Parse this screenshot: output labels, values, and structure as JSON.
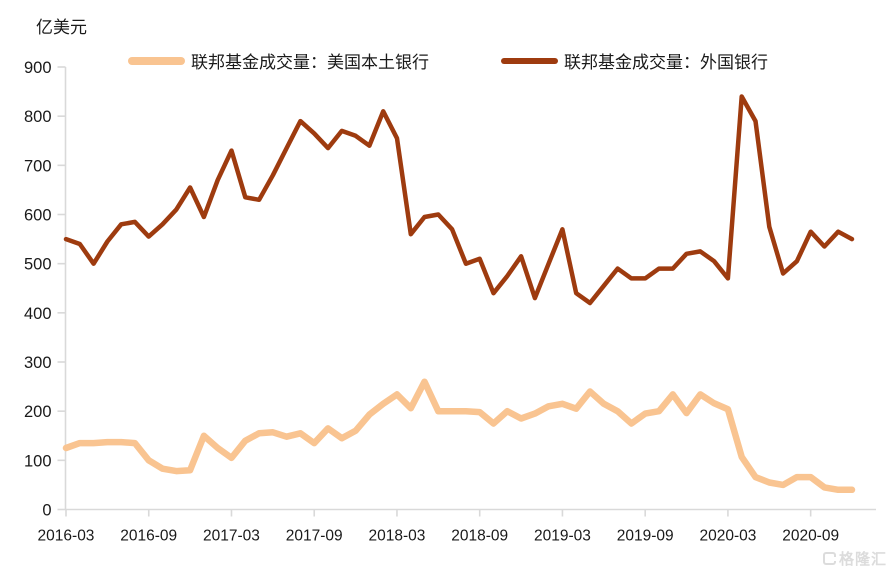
{
  "y_axis_title": "亿美元",
  "watermark": {
    "text": "格隆汇"
  },
  "colors": {
    "domestic_series": "#F9C491",
    "foreign_series": "#9E3B0F",
    "axis": "#D9D9D9",
    "text": "#1A1A1A",
    "watermark": "#DCDCDC",
    "background": "#FFFFFF"
  },
  "chart_data": {
    "type": "line",
    "title": "",
    "ylabel": "亿美元",
    "xlabel": "",
    "ylim": [
      0,
      900
    ],
    "ytick_step": 100,
    "ytick_labels": [
      "0",
      "100",
      "200",
      "300",
      "400",
      "500",
      "600",
      "700",
      "800",
      "900"
    ],
    "grid": false,
    "legend_position": "top-center",
    "x": [
      "2016-03",
      "2016-04",
      "2016-05",
      "2016-06",
      "2016-07",
      "2016-08",
      "2016-09",
      "2016-10",
      "2016-11",
      "2016-12",
      "2017-01",
      "2017-02",
      "2017-03",
      "2017-04",
      "2017-05",
      "2017-06",
      "2017-07",
      "2017-08",
      "2017-09",
      "2017-10",
      "2017-11",
      "2017-12",
      "2018-01",
      "2018-02",
      "2018-03",
      "2018-04",
      "2018-05",
      "2018-06",
      "2018-07",
      "2018-08",
      "2018-09",
      "2018-10",
      "2018-11",
      "2018-12",
      "2019-01",
      "2019-02",
      "2019-03",
      "2019-04",
      "2019-05",
      "2019-06",
      "2019-07",
      "2019-08",
      "2019-09",
      "2019-10",
      "2019-11",
      "2019-12",
      "2020-01",
      "2020-02",
      "2020-03",
      "2020-04",
      "2020-05",
      "2020-06",
      "2020-07",
      "2020-08",
      "2020-09",
      "2020-10",
      "2020-11",
      "2020-12"
    ],
    "xtick_indices": [
      0,
      6,
      12,
      18,
      24,
      30,
      36,
      42,
      48,
      54
    ],
    "xtick_labels": [
      "2016-03",
      "2016-09",
      "2017-03",
      "2017-09",
      "2018-03",
      "2018-09",
      "2019-03",
      "2019-09",
      "2020-03",
      "2020-09"
    ],
    "series": [
      {
        "name": "联邦基金成交量：美国本土银行",
        "color": "#F9C491",
        "line_width": 6.5,
        "values": [
          125,
          135,
          135,
          137,
          137,
          135,
          100,
          83,
          78,
          80,
          150,
          125,
          105,
          140,
          155,
          157,
          148,
          155,
          135,
          165,
          145,
          160,
          193,
          215,
          234,
          206,
          260,
          200,
          200,
          200,
          198,
          175,
          200,
          185,
          195,
          210,
          215,
          205,
          240,
          215,
          200,
          175,
          195,
          200,
          234,
          196,
          234,
          216,
          204,
          107,
          66,
          55,
          50,
          66,
          66,
          45,
          40,
          40
        ]
      },
      {
        "name": "联邦基金成交量：外国银行",
        "color": "#9E3B0F",
        "line_width": 4.5,
        "values": [
          550,
          540,
          500,
          545,
          580,
          585,
          555,
          580,
          610,
          655,
          595,
          670,
          730,
          635,
          630,
          680,
          735,
          790,
          765,
          735,
          770,
          760,
          740,
          810,
          755,
          560,
          595,
          600,
          570,
          500,
          510,
          440,
          475,
          515,
          430,
          500,
          570,
          440,
          420,
          455,
          490,
          470,
          470,
          490,
          490,
          520,
          525,
          505,
          470,
          840,
          790,
          575,
          480,
          505,
          565,
          535,
          565,
          550
        ]
      }
    ]
  }
}
